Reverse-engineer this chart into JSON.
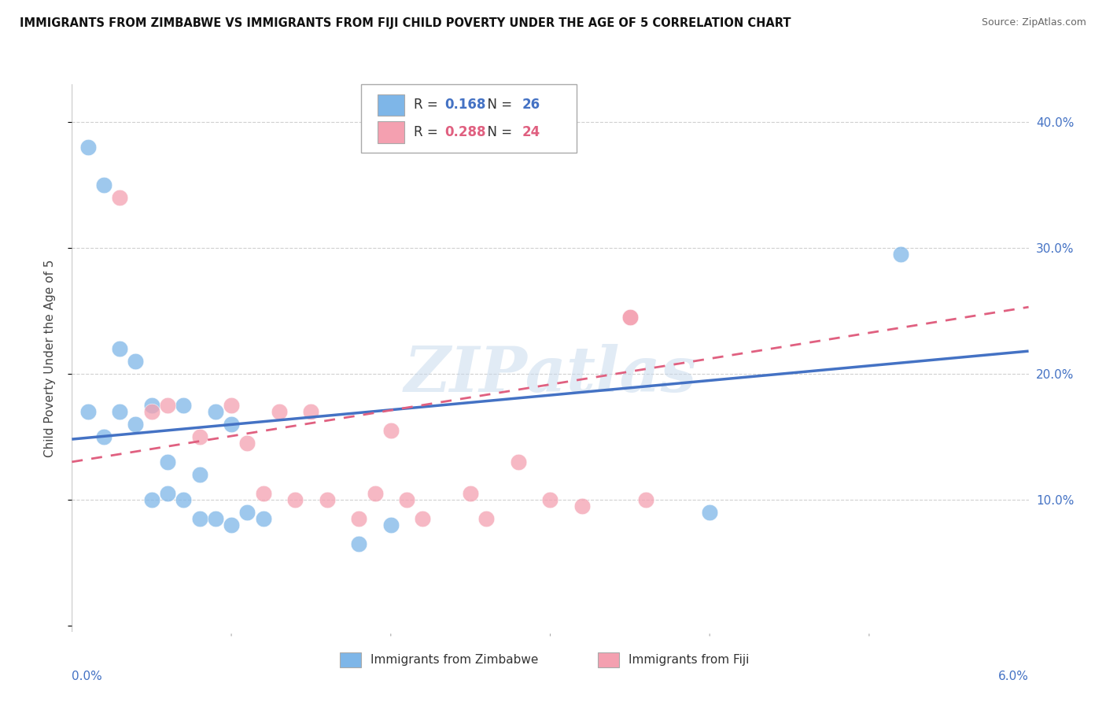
{
  "title": "IMMIGRANTS FROM ZIMBABWE VS IMMIGRANTS FROM FIJI CHILD POVERTY UNDER THE AGE OF 5 CORRELATION CHART",
  "source": "Source: ZipAtlas.com",
  "ylabel": "Child Poverty Under the Age of 5",
  "yticks": [
    0.0,
    0.1,
    0.2,
    0.3,
    0.4
  ],
  "ytick_labels": [
    "",
    "10.0%",
    "20.0%",
    "30.0%",
    "40.0%"
  ],
  "xlim": [
    0.0,
    0.06
  ],
  "ylim": [
    -0.005,
    0.43
  ],
  "zimbabwe_color": "#7EB6E8",
  "fiji_color": "#F4A0B0",
  "zimbabwe_line_color": "#4472C4",
  "fiji_line_color": "#E06080",
  "zimbabwe_R": 0.168,
  "zimbabwe_N": 26,
  "fiji_R": 0.288,
  "fiji_N": 24,
  "zimbabwe_x": [
    0.001,
    0.002,
    0.003,
    0.004,
    0.005,
    0.006,
    0.007,
    0.008,
    0.009,
    0.01,
    0.011,
    0.012,
    0.001,
    0.002,
    0.003,
    0.004,
    0.005,
    0.006,
    0.007,
    0.008,
    0.009,
    0.01,
    0.018,
    0.02,
    0.04,
    0.052
  ],
  "zimbabwe_y": [
    0.38,
    0.35,
    0.22,
    0.21,
    0.175,
    0.13,
    0.175,
    0.12,
    0.17,
    0.16,
    0.09,
    0.085,
    0.17,
    0.15,
    0.17,
    0.16,
    0.1,
    0.105,
    0.1,
    0.085,
    0.085,
    0.08,
    0.065,
    0.08,
    0.09,
    0.295
  ],
  "fiji_x": [
    0.003,
    0.005,
    0.006,
    0.008,
    0.01,
    0.011,
    0.012,
    0.013,
    0.014,
    0.015,
    0.016,
    0.018,
    0.019,
    0.02,
    0.021,
    0.022,
    0.025,
    0.026,
    0.028,
    0.03,
    0.032,
    0.035,
    0.035,
    0.036
  ],
  "fiji_y": [
    0.34,
    0.17,
    0.175,
    0.15,
    0.175,
    0.145,
    0.105,
    0.17,
    0.1,
    0.17,
    0.1,
    0.085,
    0.105,
    0.155,
    0.1,
    0.085,
    0.105,
    0.085,
    0.13,
    0.1,
    0.095,
    0.245,
    0.245,
    0.1
  ],
  "zim_line_x0": 0.0,
  "zim_line_y0": 0.148,
  "zim_line_x1": 0.06,
  "zim_line_y1": 0.218,
  "fiji_line_x0": 0.0,
  "fiji_line_y0": 0.13,
  "fiji_line_x1": 0.06,
  "fiji_line_y1": 0.253,
  "watermark": "ZIPatlas",
  "background_color": "#ffffff",
  "grid_color": "#d0d0d0"
}
